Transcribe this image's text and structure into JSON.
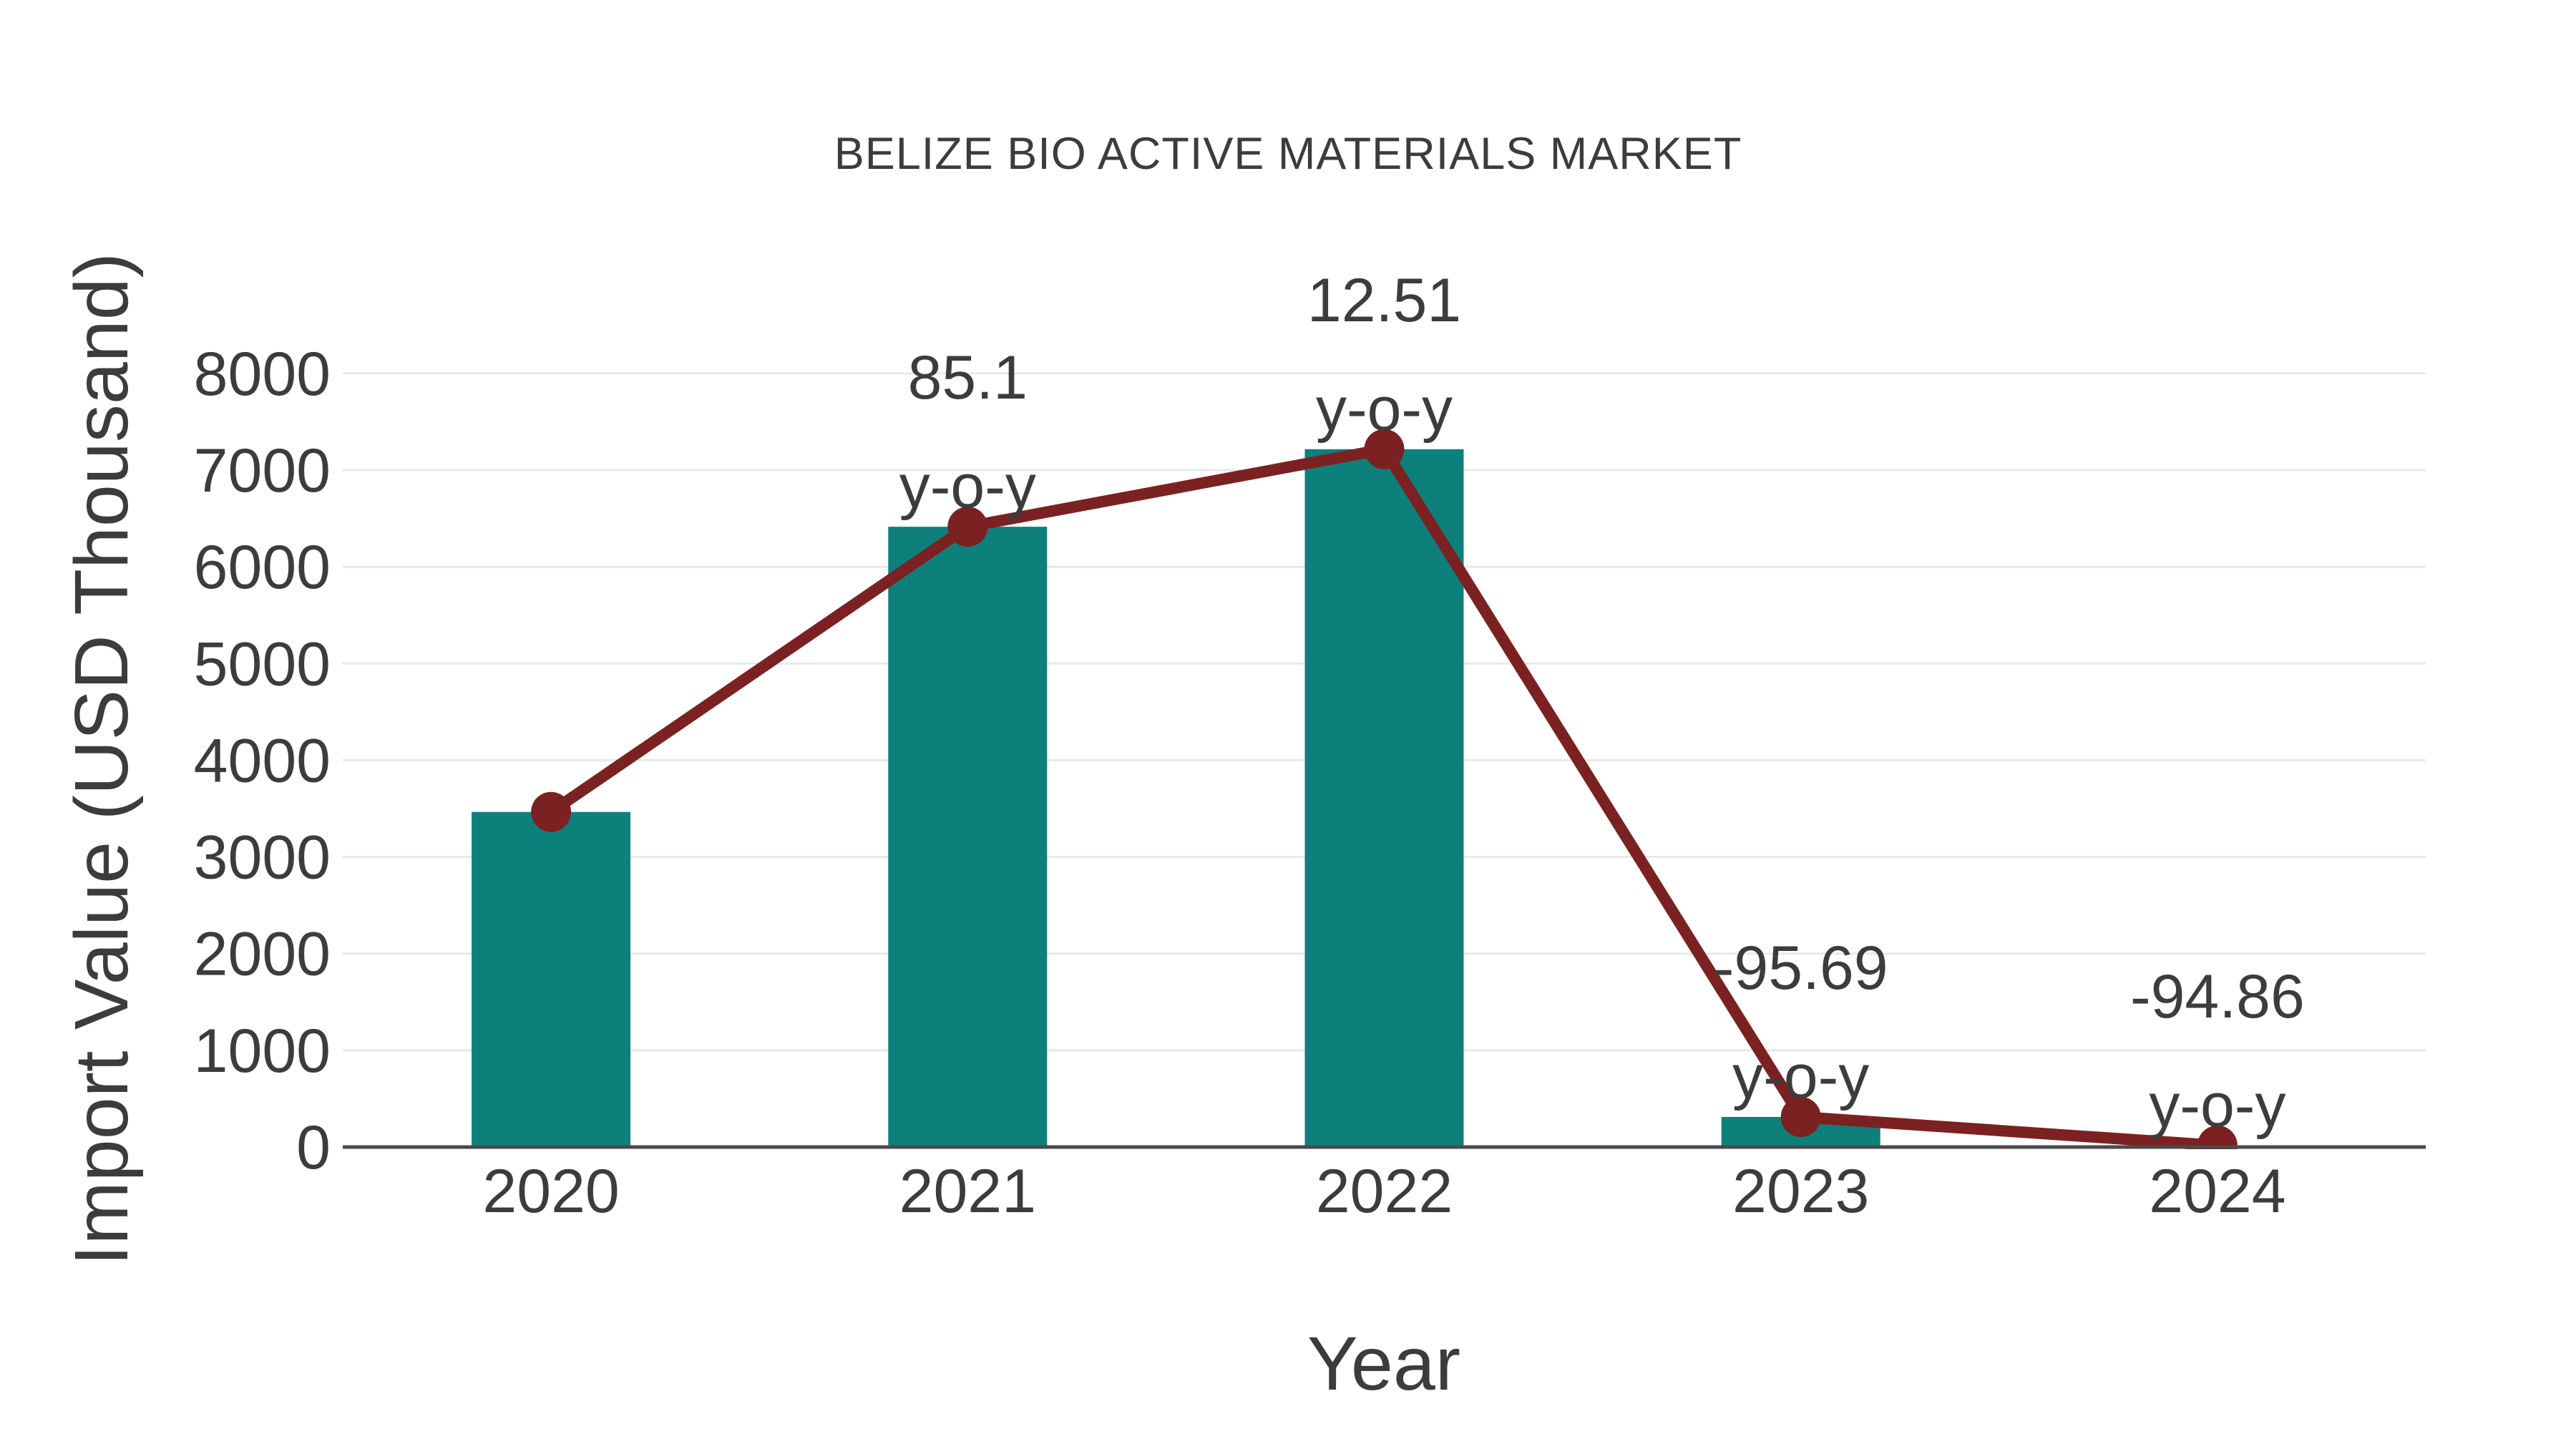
{
  "chart_data": {
    "type": "bar",
    "title": "BELIZE BIO ACTIVE MATERIALS MARKET",
    "xlabel": "Year",
    "ylabel": "Import Value (USD Thousand)",
    "categories": [
      "2020",
      "2021",
      "2022",
      "2023",
      "2024"
    ],
    "series": [
      {
        "name": "Import Value bars",
        "type": "bar",
        "color": "#0e807c",
        "values": [
          3465,
          6414,
          7216,
          311,
          16
        ]
      },
      {
        "name": "Import Value trend line",
        "type": "line",
        "color": "#7b2121",
        "values": [
          3465,
          6414,
          7216,
          311,
          16
        ]
      }
    ],
    "annotations": [
      {
        "category": "2021",
        "value": "85.1",
        "label": "y-o-y"
      },
      {
        "category": "2022",
        "value": "12.51",
        "label": "y-o-y"
      },
      {
        "category": "2023",
        "value": "-95.69",
        "label": "y-o-y"
      },
      {
        "category": "2024",
        "value": "-94.86",
        "label": "y-o-y"
      }
    ],
    "yticks": [
      0,
      1000,
      2000,
      3000,
      4000,
      5000,
      6000,
      7000,
      8000
    ],
    "ylim": [
      0,
      8000
    ],
    "grid": "horizontal",
    "legend": "none",
    "colors": {
      "bar": "#0e807c",
      "line": "#7b2121",
      "marker": "#7b2121",
      "text": "#3c3c3c",
      "grid": "#e8e8e8",
      "axis": "#4a4a4a",
      "background": "#ffffff"
    }
  }
}
